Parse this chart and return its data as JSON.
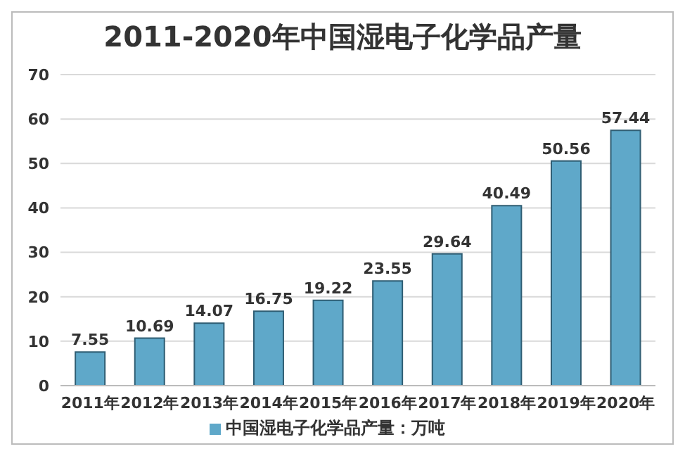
{
  "chart_data": {
    "type": "bar",
    "title": "2011-2020年中国湿电子化学品产量",
    "categories": [
      "2011年",
      "2012年",
      "2013年",
      "2014年",
      "2015年",
      "2016年",
      "2017年",
      "2018年",
      "2019年",
      "2020年"
    ],
    "series": [
      {
        "name": "中国湿电子化学品产量：万吨",
        "color": "#5fa8c9",
        "values": [
          7.55,
          10.69,
          14.07,
          16.75,
          19.22,
          23.55,
          29.64,
          40.49,
          50.56,
          57.44
        ]
      }
    ],
    "ylim": [
      0,
      70
    ],
    "yticks": [
      0,
      10,
      20,
      30,
      40,
      50,
      60,
      70
    ],
    "grid": "y",
    "legend": "bottom",
    "data_labels": true
  }
}
